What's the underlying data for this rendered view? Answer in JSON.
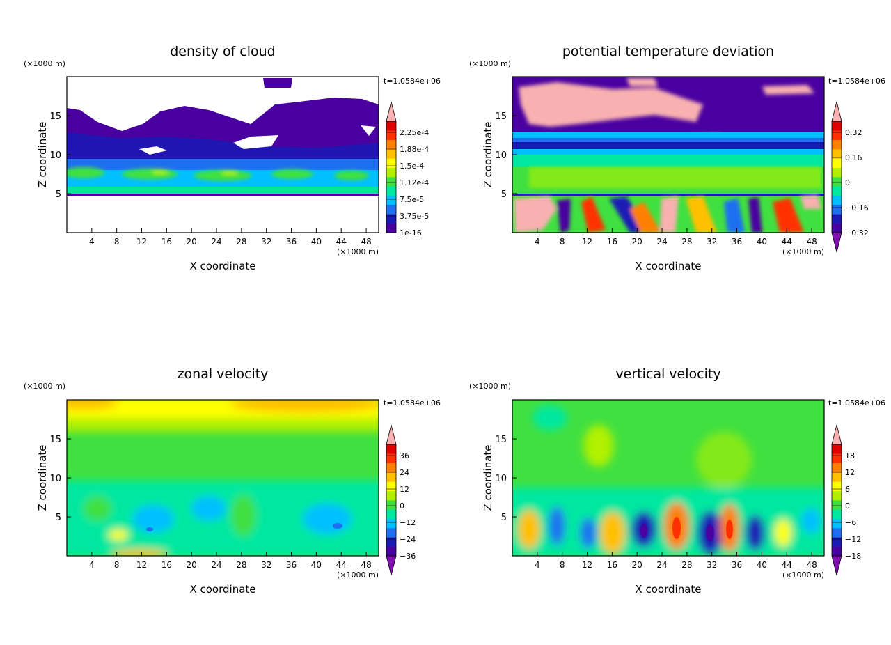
{
  "chart_data": [
    {
      "type": "heatmap",
      "title": "density of cloud",
      "xlabel": "X coordinate",
      "ylabel": "Z coordinate",
      "x_unit": "(×1000 m)",
      "y_unit": "(×1000 m)",
      "time_label": "t=1.0584e+06",
      "xlim": [
        0,
        50
      ],
      "ylim": [
        0,
        20
      ],
      "x_ticks": [
        4,
        8,
        12,
        16,
        20,
        24,
        28,
        32,
        36,
        40,
        44,
        48
      ],
      "y_ticks": [
        5,
        10,
        15
      ],
      "colorbar": {
        "labels": [
          "2.25e-4",
          "1.88e-4",
          "1.5e-4",
          "1.12e-4",
          "7.5e-5",
          "3.75e-5",
          "1e-16"
        ],
        "colors": [
          "#4a00a0",
          "#1a1ab5",
          "#1e6ff0",
          "#00c0ff",
          "#00e8a0",
          "#40e040",
          "#b0f000",
          "#ffff00",
          "#ffc000",
          "#ff8000",
          "#ff3000",
          "#e00000"
        ],
        "arrow_top": true,
        "arrow_bottom": false,
        "arrow_top_color": "#f8b0b0",
        "arrow_bottom_color": ""
      }
    },
    {
      "type": "heatmap",
      "title": "potential temperature deviation",
      "xlabel": "X coordinate",
      "ylabel": "Z coordinate",
      "x_unit": "(×1000 m)",
      "y_unit": "(×1000 m)",
      "time_label": "t=1.0584e+06",
      "xlim": [
        0,
        50
      ],
      "ylim": [
        0,
        20
      ],
      "x_ticks": [
        4,
        8,
        12,
        16,
        20,
        24,
        28,
        32,
        36,
        40,
        44,
        48
      ],
      "y_ticks": [
        5,
        10,
        15
      ],
      "colorbar": {
        "labels": [
          "0.32",
          "0.16",
          "0",
          "−0.16",
          "−0.32"
        ],
        "colors": [
          "#4a00a0",
          "#1a1ab5",
          "#1e6ff0",
          "#00c0ff",
          "#00e8a0",
          "#40e040",
          "#b0f000",
          "#ffff00",
          "#ffc000",
          "#ff8000",
          "#ff3000",
          "#e00000"
        ],
        "arrow_top": true,
        "arrow_bottom": true,
        "arrow_top_color": "#f8b0b0",
        "arrow_bottom_color": "#8010b0"
      }
    },
    {
      "type": "heatmap",
      "title": "zonal velocity",
      "xlabel": "X coordinate",
      "ylabel": "Z coordinate",
      "x_unit": "(×1000 m)",
      "y_unit": "(×1000 m)",
      "time_label": "t=1.0584e+06",
      "xlim": [
        0,
        50
      ],
      "ylim": [
        0,
        20
      ],
      "x_ticks": [
        4,
        8,
        12,
        16,
        20,
        24,
        28,
        32,
        36,
        40,
        44,
        48
      ],
      "y_ticks": [
        5,
        10,
        15
      ],
      "colorbar": {
        "labels": [
          "36",
          "24",
          "12",
          "0",
          "−12",
          "−24",
          "−36"
        ],
        "colors": [
          "#4a00a0",
          "#1a1ab5",
          "#1e6ff0",
          "#00c0ff",
          "#00e8a0",
          "#40e040",
          "#b0f000",
          "#ffff00",
          "#ffc000",
          "#ff8000",
          "#ff3000",
          "#e00000"
        ],
        "arrow_top": true,
        "arrow_bottom": true,
        "arrow_top_color": "#f8b0b0",
        "arrow_bottom_color": "#8010b0"
      }
    },
    {
      "type": "heatmap",
      "title": "vertical velocity",
      "xlabel": "X coordinate",
      "ylabel": "Z coordinate",
      "x_unit": "(×1000 m)",
      "y_unit": "(×1000 m)",
      "time_label": "t=1.0584e+06",
      "xlim": [
        0,
        50
      ],
      "ylim": [
        0,
        20
      ],
      "x_ticks": [
        4,
        8,
        12,
        16,
        20,
        24,
        28,
        32,
        36,
        40,
        44,
        48
      ],
      "y_ticks": [
        5,
        10,
        15
      ],
      "colorbar": {
        "labels": [
          "18",
          "12",
          "6",
          "0",
          "−6",
          "−12",
          "−18"
        ],
        "colors": [
          "#4a00a0",
          "#1a1ab5",
          "#1e6ff0",
          "#00c0ff",
          "#00e8a0",
          "#40e040",
          "#b0f000",
          "#ffff00",
          "#ffc000",
          "#ff8000",
          "#ff3000",
          "#e00000"
        ],
        "arrow_top": true,
        "arrow_bottom": true,
        "arrow_top_color": "#f8b0b0",
        "arrow_bottom_color": "#8010b0"
      }
    }
  ]
}
